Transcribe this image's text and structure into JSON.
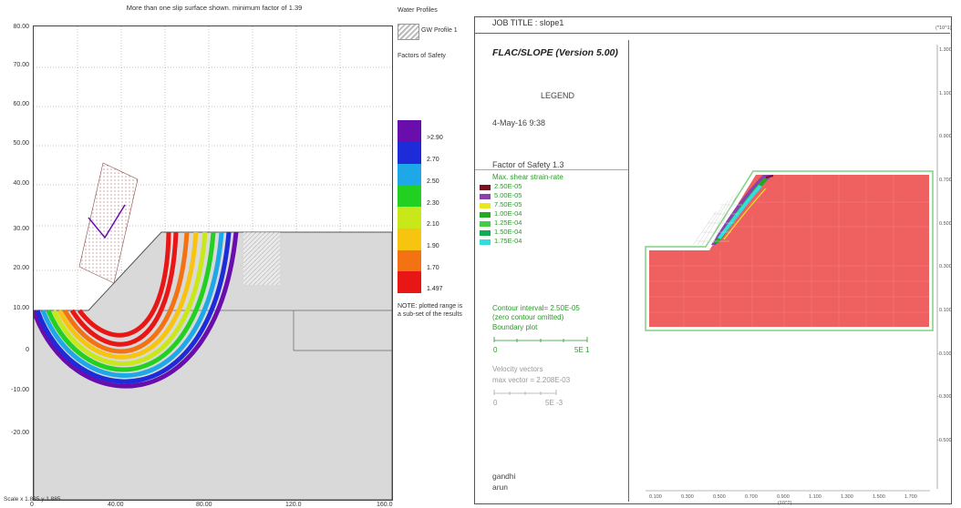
{
  "left": {
    "title": "More than one slip surface shown. minimum factor of 1.39",
    "y_ticks": [
      "80.00",
      "70.00",
      "60.00",
      "50.00",
      "40.00",
      "30.00",
      "20.00",
      "10.00",
      "0",
      "-10.00",
      "-20.00"
    ],
    "x_ticks": [
      "0",
      "40.00",
      "80.00",
      "120.0",
      "160.0"
    ],
    "scale_text": "Scale x 1.885  y 1.885",
    "water_profiles_title": "Water Profiles",
    "gw_profile_label": "GW Profile 1",
    "fos_title": "Factors of Safety",
    "fos_labels": [
      ">2.90",
      "2.70",
      "2.50",
      "2.30",
      "2.10",
      "1.90",
      "1.70",
      "1.497"
    ],
    "fos_colors": [
      "#6a0dad",
      "#1d2bd8",
      "#1fa8e8",
      "#22d022",
      "#c8e81a",
      "#f7c410",
      "#f37312",
      "#e91616"
    ],
    "note": "NOTE: plotted range is a sub-set of the results"
  },
  "right": {
    "job_title": "JOB TITLE : slope1",
    "corner_label": "(*10^1)",
    "app_title": "FLAC/SLOPE (Version 5.00)",
    "legend_label": "LEGEND",
    "timestamp": "4-May-16  9:38",
    "fos": "Factor of Safety  1.3",
    "strain_title": "Max. shear strain-rate",
    "strain_items": [
      {
        "label": "2.50E-05",
        "color": "#7a1020"
      },
      {
        "label": "5.00E-05",
        "color": "#8b3fb0"
      },
      {
        "label": "7.50E-05",
        "color": "#e8e820"
      },
      {
        "label": "1.00E-04",
        "color": "#22aa22"
      },
      {
        "label": "1.25E-04",
        "color": "#44cc44"
      },
      {
        "label": "1.50E-04",
        "color": "#11aa55"
      },
      {
        "label": "1.75E-04",
        "color": "#33dddd"
      }
    ],
    "contour_interval": "Contour interval=  2.50E-05",
    "zero_contour": "(zero contour omitted)",
    "boundary_plot": "Boundary plot",
    "boundary_scale_left": "0",
    "boundary_scale_right": "5E  1",
    "velocity_title": "Velocity vectors",
    "max_vector": "max vector =    2.208E-03",
    "velocity_scale_left": "0",
    "velocity_scale_right": "5E -3",
    "user1": "gandhi",
    "user2": "arun",
    "x_ticks": [
      "0.100",
      "0.300",
      "0.500",
      "0.700",
      "0.900",
      "1.100",
      "1.300",
      "1.500",
      "1.700"
    ],
    "x_unit": "(10^2)",
    "y_ticks": [
      "1.300",
      "1.100",
      "0.900",
      "0.700",
      "0.500",
      "0.300",
      "0.100",
      "-0.100",
      "-0.300",
      "-0.500"
    ],
    "model_color": "#ef6060"
  }
}
